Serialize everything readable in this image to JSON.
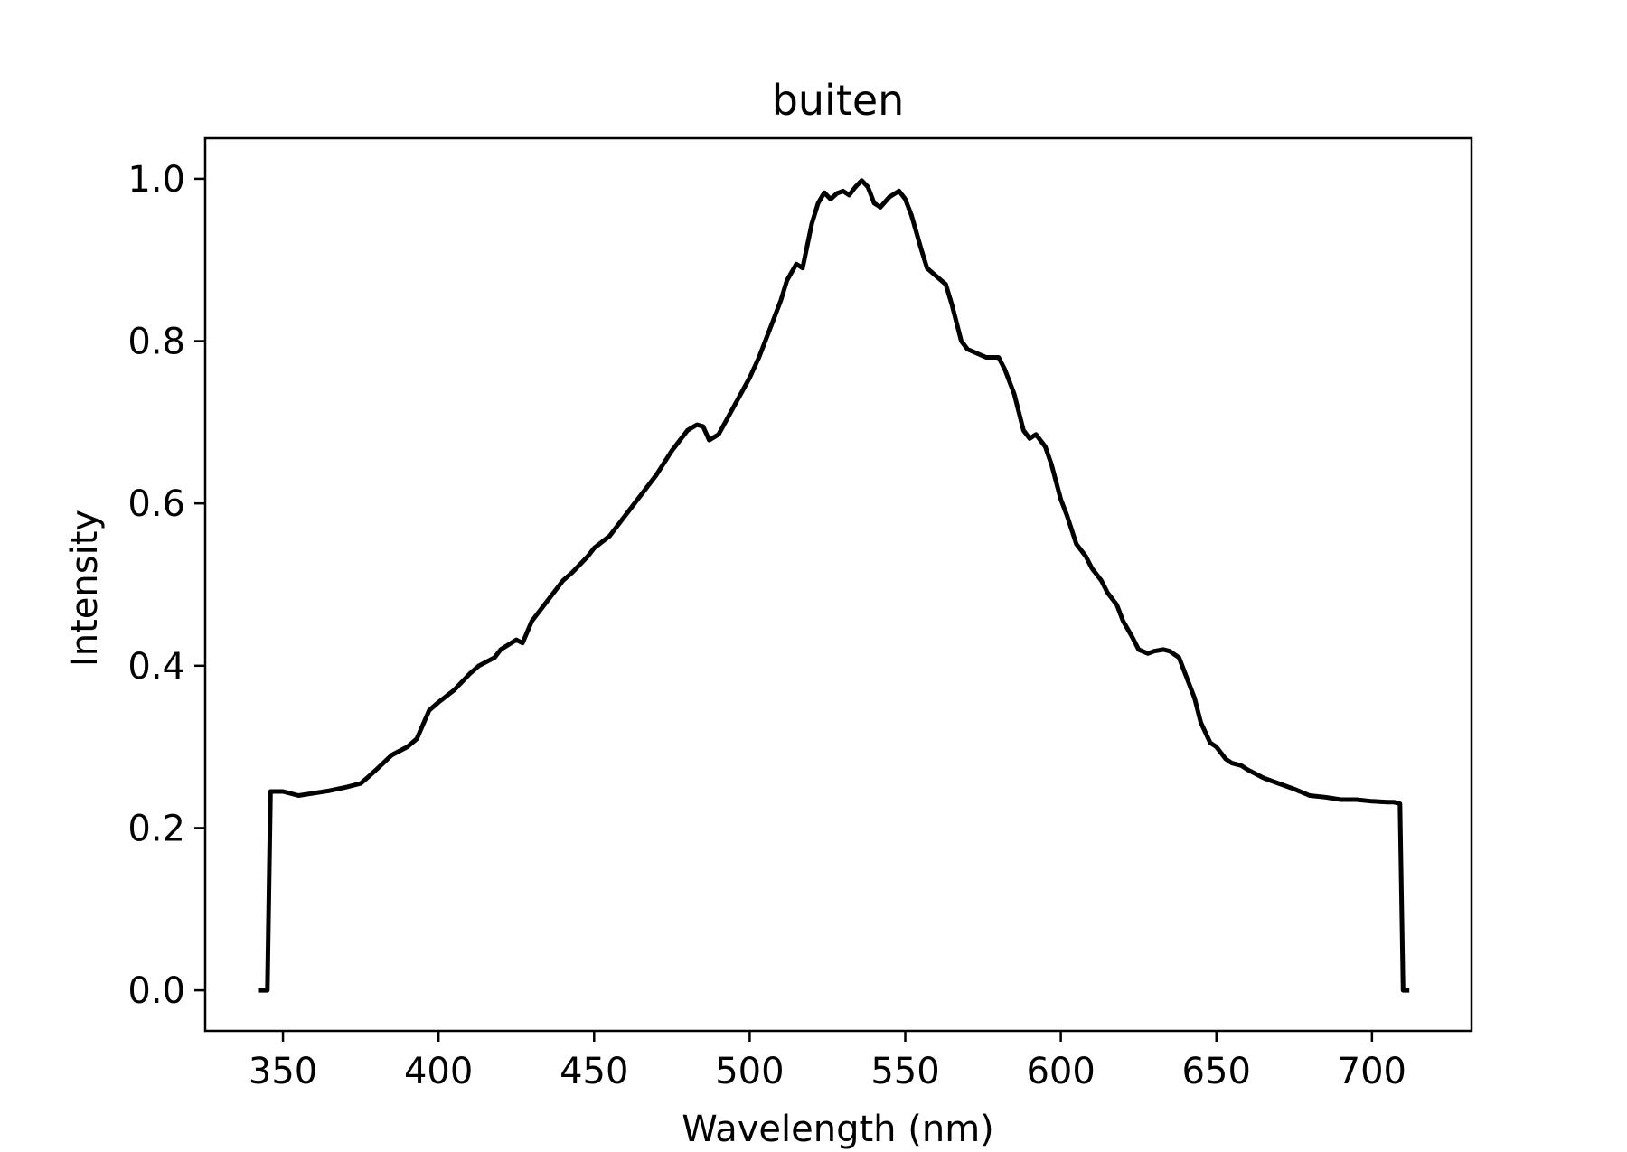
{
  "chart_data": {
    "type": "line",
    "title": "buiten",
    "xlabel": "Wavelength (nm)",
    "ylabel": "Intensity",
    "xlim": [
      325,
      732
    ],
    "ylim": [
      -0.05,
      1.05
    ],
    "x_ticks": [
      350,
      400,
      450,
      500,
      550,
      600,
      650,
      700
    ],
    "y_ticks": [
      0.0,
      0.2,
      0.4,
      0.6,
      0.8,
      1.0
    ],
    "y_tick_labels": [
      "0.0",
      "0.2",
      "0.4",
      "0.6",
      "0.8",
      "1.0"
    ],
    "grid": false,
    "legend": "none",
    "series": [
      {
        "color": "#000000",
        "x": [
          342,
          345,
          346,
          350,
          355,
          360,
          365,
          370,
          375,
          378,
          380,
          385,
          390,
          393,
          397,
          400,
          405,
          410,
          413,
          418,
          420,
          425,
          427,
          430,
          435,
          440,
          443,
          448,
          450,
          455,
          458,
          463,
          465,
          470,
          475,
          478,
          480,
          483,
          485,
          487,
          490,
          495,
          500,
          503,
          507,
          510,
          512,
          515,
          517,
          520,
          522,
          524,
          526,
          528,
          530,
          532,
          534,
          536,
          538,
          540,
          542,
          545,
          548,
          550,
          552,
          555,
          557,
          560,
          563,
          565,
          568,
          570,
          573,
          576,
          580,
          582,
          585,
          588,
          590,
          592,
          595,
          597,
          600,
          602,
          605,
          608,
          610,
          613,
          615,
          618,
          620,
          623,
          625,
          628,
          630,
          633,
          635,
          638,
          640,
          643,
          645,
          648,
          650,
          653,
          655,
          658,
          660,
          665,
          670,
          675,
          680,
          685,
          690,
          695,
          700,
          705,
          707,
          709,
          710,
          712
        ],
        "y": [
          0.0,
          0.0,
          0.245,
          0.245,
          0.24,
          0.243,
          0.246,
          0.25,
          0.255,
          0.265,
          0.272,
          0.29,
          0.3,
          0.31,
          0.345,
          0.355,
          0.37,
          0.39,
          0.4,
          0.41,
          0.42,
          0.432,
          0.428,
          0.455,
          0.48,
          0.505,
          0.515,
          0.535,
          0.545,
          0.56,
          0.575,
          0.6,
          0.61,
          0.635,
          0.665,
          0.68,
          0.69,
          0.697,
          0.695,
          0.678,
          0.685,
          0.72,
          0.755,
          0.78,
          0.82,
          0.85,
          0.875,
          0.895,
          0.89,
          0.945,
          0.97,
          0.983,
          0.975,
          0.982,
          0.985,
          0.98,
          0.99,
          0.998,
          0.99,
          0.97,
          0.965,
          0.978,
          0.985,
          0.975,
          0.955,
          0.915,
          0.89,
          0.88,
          0.87,
          0.845,
          0.8,
          0.79,
          0.785,
          0.78,
          0.78,
          0.765,
          0.735,
          0.69,
          0.68,
          0.685,
          0.67,
          0.648,
          0.605,
          0.585,
          0.55,
          0.535,
          0.52,
          0.505,
          0.49,
          0.475,
          0.455,
          0.435,
          0.42,
          0.415,
          0.418,
          0.42,
          0.418,
          0.41,
          0.39,
          0.36,
          0.33,
          0.305,
          0.3,
          0.285,
          0.28,
          0.277,
          0.272,
          0.262,
          0.255,
          0.248,
          0.24,
          0.238,
          0.235,
          0.235,
          0.233,
          0.232,
          0.232,
          0.23,
          0.0,
          0.0
        ]
      }
    ]
  }
}
